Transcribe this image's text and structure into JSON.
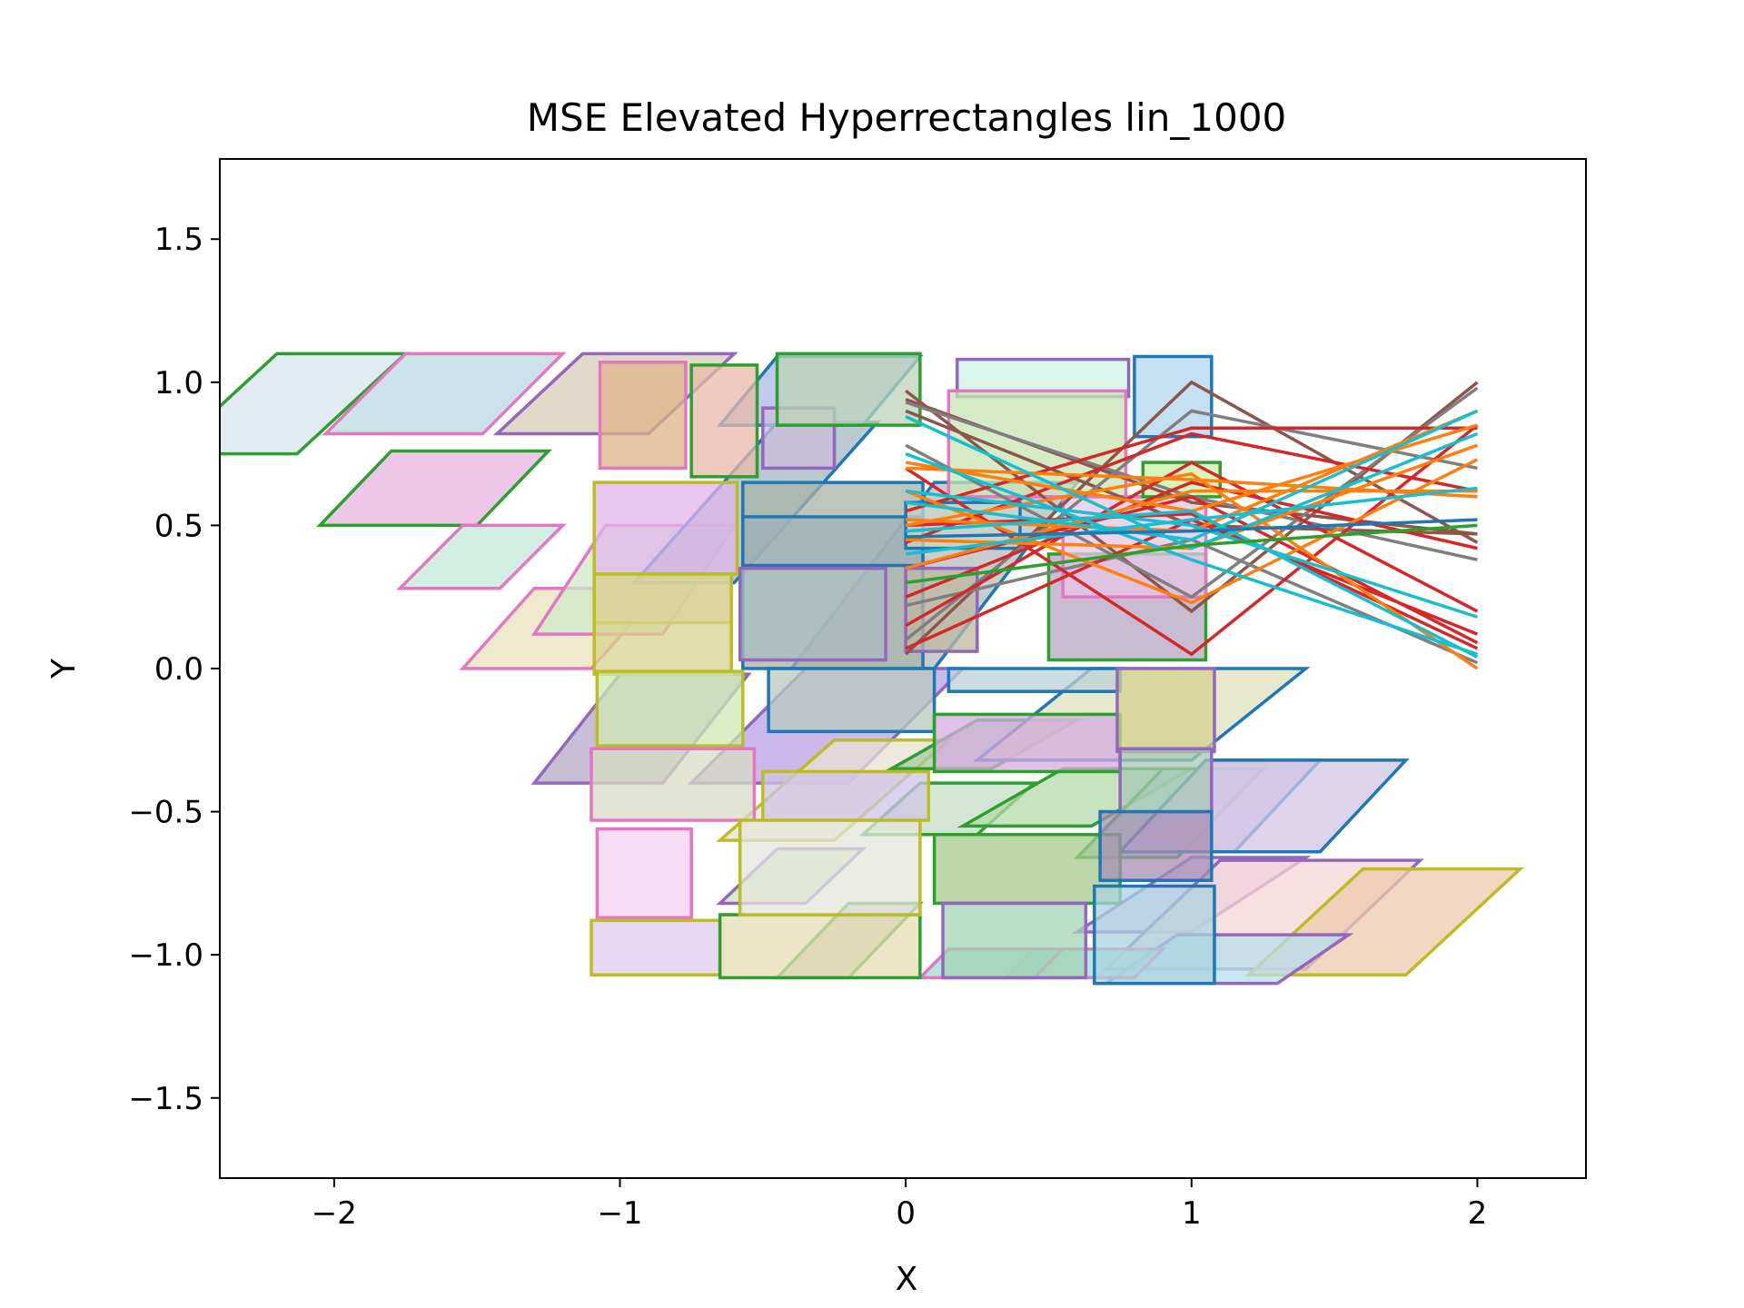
{
  "chart_data": {
    "type": "line",
    "title": "MSE Elevated Hyperrectangles lin_1000",
    "xlabel": "X",
    "ylabel": "Y",
    "xlim": [
      -2.4,
      2.38
    ],
    "ylim": [
      -1.78,
      1.78
    ],
    "xticks": [
      {
        "value": -2,
        "label": "−2"
      },
      {
        "value": -1,
        "label": "−1"
      },
      {
        "value": 0,
        "label": "0"
      },
      {
        "value": 1,
        "label": "1"
      },
      {
        "value": 2,
        "label": "2"
      }
    ],
    "yticks": [
      {
        "value": 1.5,
        "label": "1.5"
      },
      {
        "value": 1.0,
        "label": "1.0"
      },
      {
        "value": 0.5,
        "label": "0.5"
      },
      {
        "value": 0.0,
        "label": "0.0"
      },
      {
        "value": -0.5,
        "label": "−0.5"
      },
      {
        "value": -1.0,
        "label": "−1.0"
      },
      {
        "value": -1.5,
        "label": "−1.5"
      }
    ],
    "grid": false,
    "legend": false,
    "parallelograms": [
      {
        "x0": -2.2,
        "x1": -1.75,
        "y0": 0.75,
        "y1": 1.1,
        "dx": -0.38,
        "edge": "#2ca02c",
        "fill": "#d6e6ec"
      },
      {
        "x0": -1.75,
        "x1": -1.2,
        "y0": 0.82,
        "y1": 1.1,
        "dx": -0.28,
        "edge": "#e377c2",
        "fill": "#b9d8e2"
      },
      {
        "x0": -1.13,
        "x1": -0.6,
        "y0": 0.82,
        "y1": 1.1,
        "dx": -0.3,
        "edge": "#9467bd",
        "fill": "#d7ccb5"
      },
      {
        "x0": -1.8,
        "x1": -1.25,
        "y0": 0.5,
        "y1": 0.76,
        "dx": -0.25,
        "edge": "#2ca02c",
        "fill": "#e8b4e0"
      },
      {
        "x0": -1.55,
        "x1": -1.2,
        "y0": 0.28,
        "y1": 0.5,
        "dx": -0.22,
        "edge": "#e377c2",
        "fill": "#c2ead9"
      },
      {
        "x0": -1.3,
        "x1": -0.85,
        "y0": 0.0,
        "y1": 0.28,
        "dx": -0.25,
        "edge": "#e377c2",
        "fill": "#eae2bd"
      },
      {
        "x0": -1.05,
        "x1": -0.6,
        "y0": 0.12,
        "y1": 0.5,
        "dx": -0.25,
        "edge": "#e377c2",
        "fill": "#cfe9c8"
      },
      {
        "x0": -1.0,
        "x1": -0.55,
        "y0": -0.4,
        "y1": -0.02,
        "dx": -0.3,
        "edge": "#9467bd",
        "fill": "#b5a8c8"
      },
      {
        "x0": -0.45,
        "x1": -0.1,
        "y0": 0.3,
        "y1": 0.86,
        "dx": -0.5,
        "edge": "#1f77b4",
        "fill": "#a3b8c3"
      },
      {
        "x0": -0.45,
        "x1": 0.05,
        "y0": 0.85,
        "y1": 1.09,
        "dx": -0.2,
        "edge": "#1f77b4",
        "fill": "#a9b8e6"
      },
      {
        "x0": -0.35,
        "x1": 0.2,
        "y0": -0.4,
        "y1": -0.0,
        "dx": -0.4,
        "edge": "#9467bd",
        "fill": "#b9a2e6"
      },
      {
        "x0": -0.25,
        "x1": 0.15,
        "y0": -0.6,
        "y1": -0.25,
        "dx": -0.4,
        "edge": "#bcbd22",
        "fill": "#e8e2d1"
      },
      {
        "x0": -0.45,
        "x1": -0.15,
        "y0": -0.82,
        "y1": -0.63,
        "dx": -0.2,
        "edge": "#9467bd",
        "fill": "#c8e8b2"
      },
      {
        "x0": -0.2,
        "x1": 0.05,
        "y0": -1.08,
        "y1": -0.82,
        "dx": -0.25,
        "edge": "#2ca02c",
        "fill": "#b9c4b3"
      },
      {
        "x0": 0.1,
        "x1": 0.6,
        "y0": 0.0,
        "y1": 0.65,
        "dx": -0.5,
        "edge": "#1f77b4",
        "fill": "#b6bcbc"
      },
      {
        "x0": 0.25,
        "x1": 0.6,
        "y0": -0.35,
        "y1": -0.18,
        "dx": -0.3,
        "edge": "#2ca02c",
        "fill": "#a7c9a6"
      },
      {
        "x0": 0.05,
        "x1": 0.45,
        "y0": -0.58,
        "y1": -0.4,
        "dx": -0.2,
        "edge": "#2ca02c",
        "fill": "#c4dec5"
      },
      {
        "x0": 0.55,
        "x1": 1.0,
        "y0": -0.55,
        "y1": -0.35,
        "dx": -0.35,
        "edge": "#2ca02c",
        "fill": "#b5d9a9"
      },
      {
        "x0": 0.9,
        "x1": 1.25,
        "y0": -0.66,
        "y1": -0.35,
        "dx": -0.3,
        "edge": "#2ca02c",
        "fill": "#9ed3bf"
      },
      {
        "x0": 1.05,
        "x1": 1.45,
        "y0": -0.64,
        "y1": -0.32,
        "dx": -0.3,
        "edge": "#1f77b4",
        "fill": "#d4c6e6"
      },
      {
        "x0": 1.05,
        "x1": 1.75,
        "y0": -0.64,
        "y1": -0.32,
        "dx": -0.3,
        "edge": "#1f77b4",
        "fill": "#d2c4e4"
      },
      {
        "x0": 0.65,
        "x1": 1.4,
        "y0": -0.32,
        "y1": -0.0,
        "dx": -0.4,
        "edge": "#1f77b4",
        "fill": "#dee2bd"
      },
      {
        "x0": 1.0,
        "x1": 1.4,
        "y0": -0.92,
        "y1": -0.66,
        "dx": -0.4,
        "edge": "#9467bd",
        "fill": "#e1c3ef"
      },
      {
        "x0": 1.1,
        "x1": 1.8,
        "y0": -1.05,
        "y1": -0.67,
        "dx": -0.4,
        "edge": "#9467bd",
        "fill": "#f5d6d6"
      },
      {
        "x0": 1.6,
        "x1": 2.15,
        "y0": -1.07,
        "y1": -0.7,
        "dx": -0.4,
        "edge": "#bcbd22",
        "fill": "#eecbad"
      },
      {
        "x0": 0.95,
        "x1": 1.55,
        "y0": -1.1,
        "y1": -0.93,
        "dx": -0.25,
        "edge": "#9467bd",
        "fill": "#b8dfee"
      },
      {
        "x0": 0.45,
        "x1": 0.9,
        "y0": -1.08,
        "y1": -0.98,
        "dx": -0.1,
        "edge": "#e377c2",
        "fill": "#a1dfd2"
      },
      {
        "x0": 0.15,
        "x1": 0.55,
        "y0": -1.08,
        "y1": -0.98,
        "dx": -0.1,
        "edge": "#e377c2",
        "fill": "#9fded4"
      }
    ],
    "rectangles": [
      {
        "x0": -1.07,
        "x1": -0.77,
        "y0": 0.7,
        "y1": 1.07,
        "edge": "#e377c2",
        "fill": "#deb388"
      },
      {
        "x0": -0.75,
        "x1": -0.52,
        "y0": 0.67,
        "y1": 1.06,
        "edge": "#2ca02c",
        "fill": "#e9b8a8"
      },
      {
        "x0": -0.5,
        "x1": -0.25,
        "y0": 0.7,
        "y1": 0.91,
        "edge": "#9467bd",
        "fill": "#cbbcdc"
      },
      {
        "x0": -0.45,
        "x1": 0.05,
        "y0": 0.85,
        "y1": 1.1,
        "edge": "#2ca02c",
        "fill": "#bcd4b8"
      },
      {
        "x0": 0.18,
        "x1": 0.78,
        "y0": 0.95,
        "y1": 1.08,
        "edge": "#9467bd",
        "fill": "#ccf3e6"
      },
      {
        "x0": 0.8,
        "x1": 1.07,
        "y0": 0.81,
        "y1": 1.09,
        "edge": "#1f77b4",
        "fill": "#b0d6ee"
      },
      {
        "x0": 0.15,
        "x1": 0.77,
        "y0": 0.6,
        "y1": 0.97,
        "edge": "#e377c2",
        "fill": "#c8e6b4"
      },
      {
        "x0": -1.09,
        "x1": -0.59,
        "y0": 0.33,
        "y1": 0.65,
        "edge": "#bcbd22",
        "fill": "#e2b4ec"
      },
      {
        "x0": -1.09,
        "x1": -0.61,
        "y0": 0.16,
        "y1": 0.33,
        "edge": "#bcbd22",
        "fill": "#e6c6c9"
      },
      {
        "x0": -1.09,
        "x1": -0.61,
        "y0": -0.02,
        "y1": 0.33,
        "edge": "#bcbd22",
        "fill": "#d7d48c"
      },
      {
        "x0": -0.57,
        "x1": 0.06,
        "y0": 0.0,
        "y1": 0.65,
        "edge": "#1f77b4",
        "fill": "#a7b1a7"
      },
      {
        "x0": -0.57,
        "x1": 0.06,
        "y0": 0.36,
        "y1": 0.53,
        "edge": "#1f77b4",
        "fill": "#9eb0b8"
      },
      {
        "x0": -0.58,
        "x1": -0.07,
        "y0": 0.03,
        "y1": 0.35,
        "edge": "#9467bd",
        "fill": "#a9bcc2"
      },
      {
        "x0": -1.08,
        "x1": -0.57,
        "y0": -0.27,
        "y1": -0.01,
        "edge": "#bcbd22",
        "fill": "#cfe8b5"
      },
      {
        "x0": -1.1,
        "x1": -0.53,
        "y0": -0.53,
        "y1": -0.28,
        "edge": "#e377c2",
        "fill": "#d8dcc4"
      },
      {
        "x0": -1.08,
        "x1": -0.75,
        "y0": -0.87,
        "y1": -0.56,
        "edge": "#e377c2",
        "fill": "#f5d0ef"
      },
      {
        "x0": -1.1,
        "x1": -0.65,
        "y0": -1.07,
        "y1": -0.88,
        "edge": "#bcbd22",
        "fill": "#dfcbf0"
      },
      {
        "x0": -0.65,
        "x1": 0.05,
        "y0": -1.08,
        "y1": -0.86,
        "edge": "#2ca02c",
        "fill": "#e6dcb6"
      },
      {
        "x0": -0.58,
        "x1": 0.05,
        "y0": -0.86,
        "y1": -0.53,
        "edge": "#bcbd22",
        "fill": "#e6e5de"
      },
      {
        "x0": -0.48,
        "x1": 0.1,
        "y0": -0.22,
        "y1": -0.0,
        "edge": "#1f77b4",
        "fill": "#b9c9bd"
      },
      {
        "x0": -0.5,
        "x1": 0.08,
        "y0": -0.53,
        "y1": -0.36,
        "edge": "#bcbd22",
        "fill": "#cfc4e7"
      },
      {
        "x0": 0.1,
        "x1": 0.75,
        "y0": -0.82,
        "y1": -0.58,
        "edge": "#2ca02c",
        "fill": "#a5c98e"
      },
      {
        "x0": 0.13,
        "x1": 0.63,
        "y0": -1.08,
        "y1": -0.82,
        "edge": "#9467bd",
        "fill": "#a3d3b5"
      },
      {
        "x0": 0.1,
        "x1": 0.75,
        "y0": -0.36,
        "y1": -0.16,
        "edge": "#2ca02c",
        "fill": "#d7abe0"
      },
      {
        "x0": 0.15,
        "x1": 0.75,
        "y0": -0.08,
        "y1": -0.0,
        "edge": "#1f77b4",
        "fill": "#bcd0d6"
      },
      {
        "x0": 0.74,
        "x1": 1.08,
        "y0": -0.29,
        "y1": 0.0,
        "edge": "#9467bd",
        "fill": "#d3d28d"
      },
      {
        "x0": 0.75,
        "x1": 1.07,
        "y0": -0.5,
        "y1": -0.28,
        "edge": "#9467bd",
        "fill": "#a8c8b4"
      },
      {
        "x0": 0.68,
        "x1": 1.07,
        "y0": -0.74,
        "y1": -0.5,
        "edge": "#1f77b4",
        "fill": "#a58fb3"
      },
      {
        "x0": 0.66,
        "x1": 1.08,
        "y0": -1.1,
        "y1": -0.76,
        "edge": "#1f77b4",
        "fill": "#abd3df"
      },
      {
        "x0": 0.5,
        "x1": 1.05,
        "y0": 0.03,
        "y1": 0.4,
        "edge": "#2ca02c",
        "fill": "#b5a6c4"
      },
      {
        "x0": 0.55,
        "x1": 1.05,
        "y0": 0.25,
        "y1": 0.6,
        "edge": "#e377c2",
        "fill": "#e6c7e4"
      },
      {
        "x0": 0.0,
        "x1": 0.4,
        "y0": 0.42,
        "y1": 0.58,
        "edge": "#1f77b4",
        "fill": "#c8d6c8"
      },
      {
        "x0": 0.0,
        "x1": 0.25,
        "y0": 0.06,
        "y1": 0.35,
        "edge": "#9467bd",
        "fill": "#bcb8a0"
      },
      {
        "x0": 0.83,
        "x1": 1.1,
        "y0": 0.6,
        "y1": 0.72,
        "edge": "#2ca02c",
        "fill": "#c8f0a8"
      }
    ],
    "line_segments": {
      "x": [
        0,
        1,
        2
      ],
      "series": [
        {
          "color": "#8c564b",
          "y": [
            0.97,
            0.2,
            1.0
          ]
        },
        {
          "color": "#8c564b",
          "y": [
            0.94,
            0.58,
            0.47
          ]
        },
        {
          "color": "#8c564b",
          "y": [
            0.9,
            0.5,
            0.47
          ]
        },
        {
          "color": "#8c564b",
          "y": [
            0.05,
            1.0,
            0.44
          ]
        },
        {
          "color": "#7f7f7f",
          "y": [
            0.1,
            0.9,
            0.7
          ]
        },
        {
          "color": "#7f7f7f",
          "y": [
            0.93,
            0.6,
            0.38
          ]
        },
        {
          "color": "#7f7f7f",
          "y": [
            0.78,
            0.25,
            0.98
          ]
        },
        {
          "color": "#7f7f7f",
          "y": [
            0.22,
            0.45,
            0.02
          ]
        },
        {
          "color": "#d62728",
          "y": [
            0.55,
            0.84,
            0.84
          ]
        },
        {
          "color": "#d62728",
          "y": [
            0.44,
            0.82,
            0.62
          ]
        },
        {
          "color": "#d62728",
          "y": [
            0.7,
            0.05,
            0.85
          ]
        },
        {
          "color": "#d62728",
          "y": [
            0.15,
            0.72,
            0.2
          ]
        },
        {
          "color": "#d62728",
          "y": [
            0.35,
            0.6,
            0.09
          ]
        },
        {
          "color": "#d62728",
          "y": [
            0.5,
            0.54,
            0.07
          ]
        },
        {
          "color": "#d62728",
          "y": [
            0.07,
            0.52,
            0.12
          ]
        },
        {
          "color": "#d62728",
          "y": [
            0.25,
            0.65,
            0.42
          ]
        },
        {
          "color": "#ff7f0e",
          "y": [
            0.72,
            0.55,
            0.85
          ]
        },
        {
          "color": "#ff7f0e",
          "y": [
            0.7,
            0.66,
            0.6
          ]
        },
        {
          "color": "#ff7f0e",
          "y": [
            0.62,
            0.23,
            0.73
          ]
        },
        {
          "color": "#ff7f0e",
          "y": [
            0.5,
            0.68,
            0.0
          ]
        },
        {
          "color": "#ff7f0e",
          "y": [
            0.52,
            0.48,
            0.9
          ]
        },
        {
          "color": "#ff7f0e",
          "y": [
            0.35,
            0.62,
            0.62
          ]
        },
        {
          "color": "#ff7f0e",
          "y": [
            0.45,
            0.42,
            0.78
          ]
        },
        {
          "color": "#17becf",
          "y": [
            0.88,
            0.42,
            0.82
          ]
        },
        {
          "color": "#17becf",
          "y": [
            0.75,
            0.38,
            0.05
          ]
        },
        {
          "color": "#17becf",
          "y": [
            0.62,
            0.5,
            0.18
          ]
        },
        {
          "color": "#17becf",
          "y": [
            0.58,
            0.45,
            0.9
          ]
        },
        {
          "color": "#17becf",
          "y": [
            0.4,
            0.52,
            0.63
          ]
        },
        {
          "color": "#17becf",
          "y": [
            0.48,
            0.55,
            0.04
          ]
        },
        {
          "color": "#2ca02c",
          "y": [
            0.3,
            0.43,
            0.5
          ]
        },
        {
          "color": "#1f77b4",
          "y": [
            0.46,
            0.48,
            0.52
          ]
        }
      ]
    }
  }
}
